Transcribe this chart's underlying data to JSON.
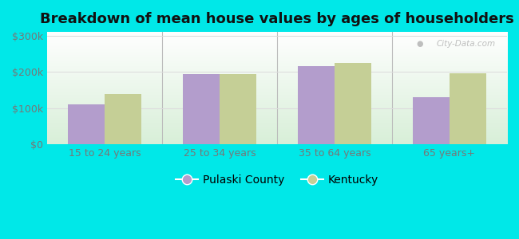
{
  "title": "Breakdown of mean house values by ages of householders",
  "categories": [
    "15 to 24 years",
    "25 to 34 years",
    "35 to 64 years",
    "65 years+"
  ],
  "pulaski_values": [
    110000,
    193000,
    215000,
    130000
  ],
  "kentucky_values": [
    140000,
    193000,
    225000,
    197000
  ],
  "pulaski_color": "#b39dcc",
  "kentucky_color": "#c5cf96",
  "background_color": "#00e8e8",
  "ylim": [
    0,
    310000
  ],
  "yticks": [
    0,
    100000,
    200000,
    300000
  ],
  "ytick_labels": [
    "$0",
    "$100k",
    "$200k",
    "$300k"
  ],
  "legend_labels": [
    "Pulaski County",
    "Kentucky"
  ],
  "title_fontsize": 13,
  "bar_width": 0.32,
  "watermark": "City-Data.com",
  "plot_bg_top": "#ffffff",
  "plot_bg_bottom": "#d8efd8",
  "grid_color": "#dddddd",
  "tick_color": "#777777",
  "divider_color": "#bbbbbb"
}
